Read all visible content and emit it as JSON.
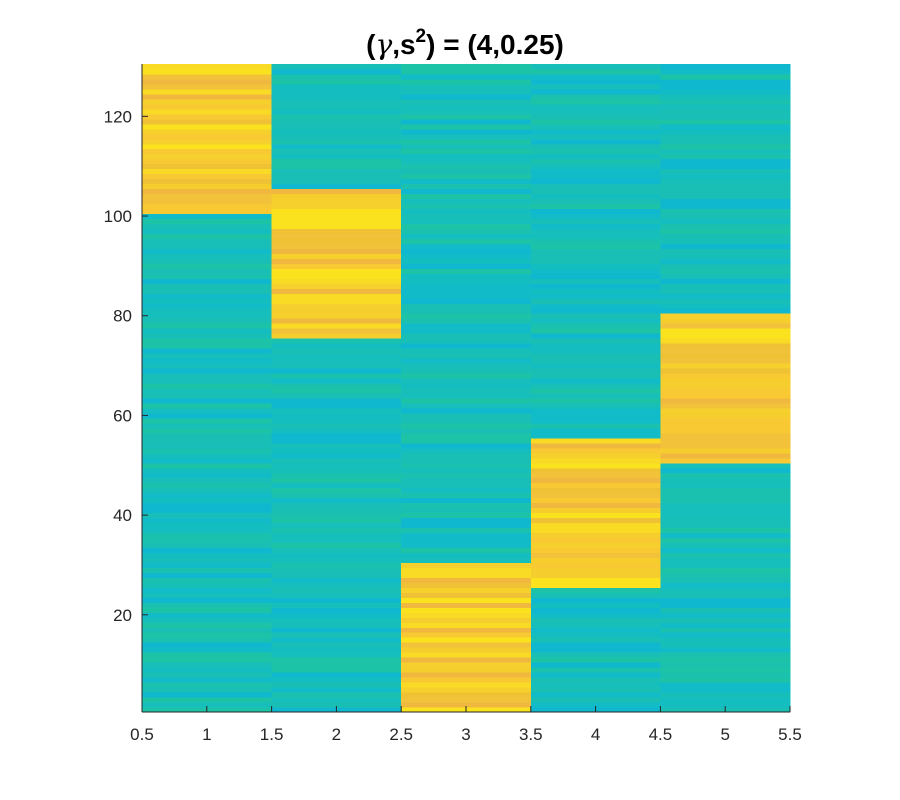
{
  "chart_data": {
    "type": "heatmap",
    "title": {
      "prefix": "(",
      "gamma": "γ",
      "sep": ",s",
      "exponent": "2",
      "suffix": ") = (4,0.25)"
    },
    "xlabel": "",
    "ylabel": "",
    "xlim": [
      0.5,
      5.5
    ],
    "ylim": [
      0.5,
      130.5
    ],
    "x_ticks": [
      0.5,
      1,
      1.5,
      2,
      2.5,
      3,
      3.5,
      4,
      4.5,
      5,
      5.5
    ],
    "x_tick_labels": [
      "0.5",
      "1",
      "1.5",
      "2",
      "2.5",
      "3",
      "3.5",
      "4",
      "4.5",
      "5",
      "5.5"
    ],
    "y_ticks": [
      20,
      40,
      60,
      80,
      100,
      120
    ],
    "y_tick_labels": [
      "20",
      "40",
      "60",
      "80",
      "100",
      "120"
    ],
    "columns": [
      1,
      2,
      3,
      4,
      5
    ],
    "rows": 130,
    "colormap": "parula",
    "grid": false,
    "low_value_color": "#17BFB8",
    "high_value_color": "#F8C932",
    "high_blocks": [
      {
        "column": 1,
        "row_from": 101,
        "row_to": 130
      },
      {
        "column": 2,
        "row_from": 76,
        "row_to": 105
      },
      {
        "column": 3,
        "row_from": 1,
        "row_to": 30
      },
      {
        "column": 4,
        "row_from": 26,
        "row_to": 55
      },
      {
        "column": 5,
        "row_from": 51,
        "row_to": 80
      }
    ]
  }
}
